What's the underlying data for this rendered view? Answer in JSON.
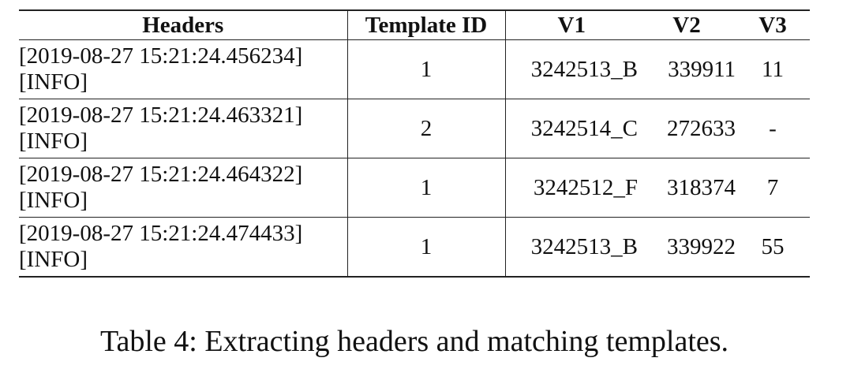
{
  "table": {
    "columns": [
      "Headers",
      "Template ID",
      "V1",
      "V2",
      "V3"
    ],
    "rows": [
      {
        "header_line1": "[2019-08-27 15:21:24.456234]",
        "header_line2": "[INFO]",
        "template_id": "1",
        "v1": "3242513_B",
        "v2": "339911",
        "v3": "11"
      },
      {
        "header_line1": "[2019-08-27 15:21:24.463321]",
        "header_line2": "[INFO]",
        "template_id": "2",
        "v1": "3242514_C",
        "v2": "272633",
        "v3": "-"
      },
      {
        "header_line1": "[2019-08-27 15:21:24.464322]",
        "header_line2": "[INFO]",
        "template_id": "1",
        "v1": "3242512_F",
        "v2": "318374",
        "v3": "7"
      },
      {
        "header_line1": "[2019-08-27 15:21:24.474433]",
        "header_line2": "[INFO]",
        "template_id": "1",
        "v1": "3242513_B",
        "v2": "339922",
        "v3": "55"
      }
    ]
  },
  "caption": "Table 4: Extracting headers and matching templates."
}
